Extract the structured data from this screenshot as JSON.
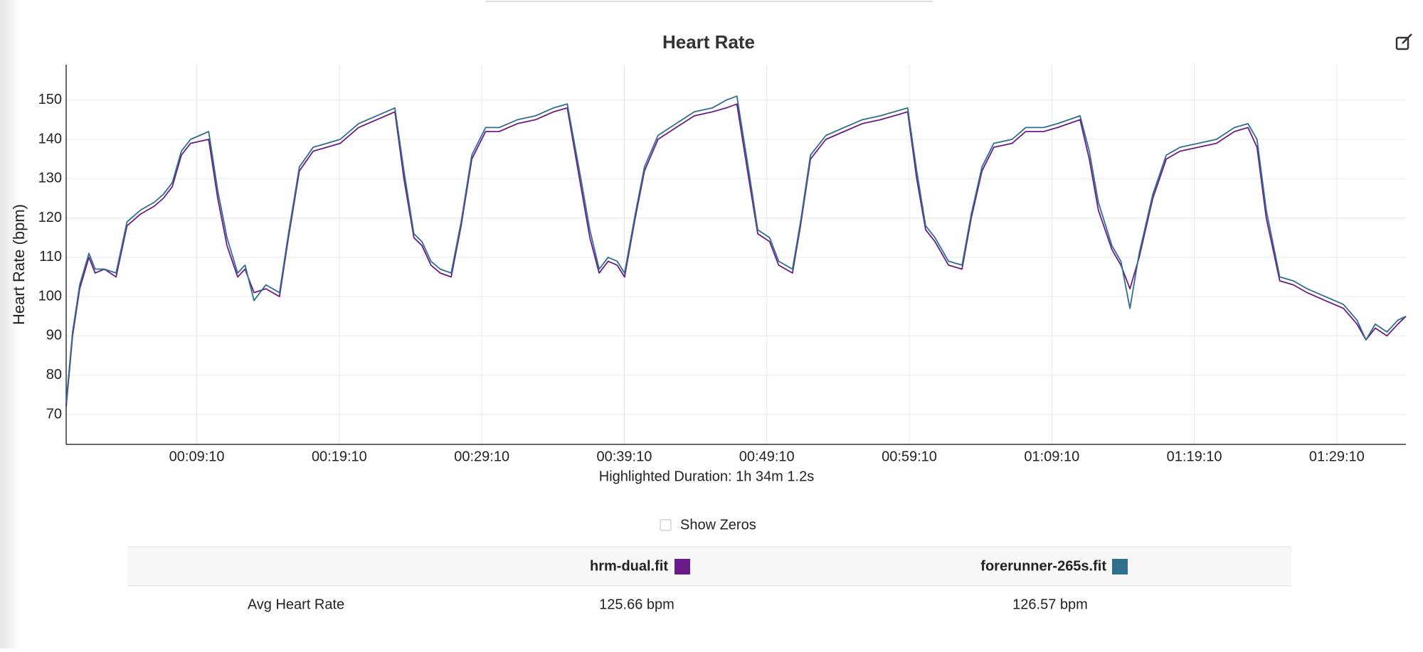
{
  "chart_data": {
    "type": "line",
    "title": "Heart Rate",
    "ylabel": "Heart Rate (bpm)",
    "xlabel": "Highlighted Duration: 1h 34m 1.2s",
    "x": [
      0,
      27,
      57,
      96,
      122,
      161,
      210,
      256,
      313,
      371,
      409,
      447,
      485,
      524,
      600,
      638,
      677,
      722,
      753,
      791,
      841,
      898,
      936,
      982,
      1040,
      1097,
      1154,
      1231,
      1307,
      1384,
      1422,
      1464,
      1498,
      1536,
      1575,
      1621,
      1663,
      1708,
      1766,
      1823,
      1900,
      1976,
      2052,
      2110,
      2167,
      2205,
      2244,
      2282,
      2320,
      2351,
      2396,
      2435,
      2492,
      2568,
      2645,
      2721,
      2779,
      2824,
      2874,
      2912,
      2962,
      3000,
      3058,
      3092,
      3134,
      3199,
      3275,
      3352,
      3428,
      3486,
      3543,
      3581,
      3619,
      3658,
      3715,
      3772,
      3811,
      3856,
      3906,
      3983,
      4040,
      4116,
      4174,
      4269,
      4308,
      4346,
      4403,
      4441,
      4479,
      4518,
      4575,
      4632,
      4690,
      4766,
      4843,
      4919,
      4976,
      5014,
      5053,
      5110,
      5167,
      5225,
      5301,
      5378,
      5435,
      5473,
      5512,
      5561,
      5607,
      5641
    ],
    "series": [
      {
        "name": "hrm-dual.fit",
        "color": "#6a1b8a",
        "values": [
          72,
          90,
          102,
          110,
          106,
          107,
          105,
          118,
          121,
          123,
          125,
          128,
          136,
          139,
          140,
          125,
          113,
          105,
          107,
          101,
          102,
          100,
          115,
          132,
          137,
          138,
          139,
          143,
          145,
          147,
          130,
          115,
          113,
          108,
          106,
          105,
          118,
          135,
          142,
          142,
          144,
          145,
          147,
          148,
          128,
          115,
          106,
          109,
          108,
          105,
          120,
          132,
          140,
          143,
          146,
          147,
          148,
          149,
          130,
          116,
          114,
          108,
          106,
          118,
          135,
          140,
          142,
          144,
          145,
          146,
          147,
          130,
          117,
          114,
          108,
          107,
          120,
          132,
          138,
          139,
          142,
          142,
          143,
          145,
          135,
          122,
          112,
          108,
          102,
          110,
          125,
          135,
          137,
          138,
          139,
          142,
          143,
          138,
          120,
          104,
          103,
          101,
          99,
          97,
          93,
          89,
          92,
          90,
          93,
          95
        ]
      },
      {
        "name": "forerunner-265s.fit",
        "color": "#2e6e8e",
        "values": [
          73,
          91,
          103,
          111,
          107,
          107,
          106,
          119,
          122,
          124,
          126,
          129,
          137,
          140,
          142,
          127,
          115,
          106,
          108,
          99,
          103,
          101,
          116,
          133,
          138,
          139,
          140,
          144,
          146,
          148,
          132,
          116,
          114,
          109,
          107,
          106,
          119,
          136,
          143,
          143,
          145,
          146,
          148,
          149,
          130,
          117,
          107,
          110,
          109,
          106,
          121,
          133,
          141,
          144,
          147,
          148,
          150,
          151,
          132,
          117,
          115,
          109,
          107,
          119,
          136,
          141,
          143,
          145,
          146,
          147,
          148,
          132,
          118,
          115,
          109,
          108,
          121,
          133,
          139,
          140,
          143,
          143,
          144,
          146,
          137,
          124,
          113,
          109,
          97,
          111,
          126,
          136,
          138,
          139,
          140,
          143,
          144,
          140,
          122,
          105,
          104,
          102,
          100,
          98,
          94,
          89,
          93,
          91,
          94,
          95
        ]
      }
    ],
    "xlim": [
      0,
      5641
    ],
    "ylim": [
      62.4,
      159
    ],
    "xticks": [
      {
        "value": 550,
        "label": "00:09:10"
      },
      {
        "value": 1150,
        "label": "00:19:10"
      },
      {
        "value": 1750,
        "label": "00:29:10"
      },
      {
        "value": 2350,
        "label": "00:39:10"
      },
      {
        "value": 2950,
        "label": "00:49:10"
      },
      {
        "value": 3550,
        "label": "00:59:10"
      },
      {
        "value": 4150,
        "label": "01:09:10"
      },
      {
        "value": 4750,
        "label": "01:19:10"
      },
      {
        "value": 5350,
        "label": "01:29:10"
      }
    ],
    "yticks": [
      70,
      80,
      90,
      100,
      110,
      120,
      130,
      140,
      150
    ],
    "grid": true
  },
  "show_zeros": "Show Zeros",
  "table": {
    "rows": [
      [
        "Avg Heart Rate",
        "125.66 bpm",
        "126.57 bpm"
      ]
    ]
  }
}
